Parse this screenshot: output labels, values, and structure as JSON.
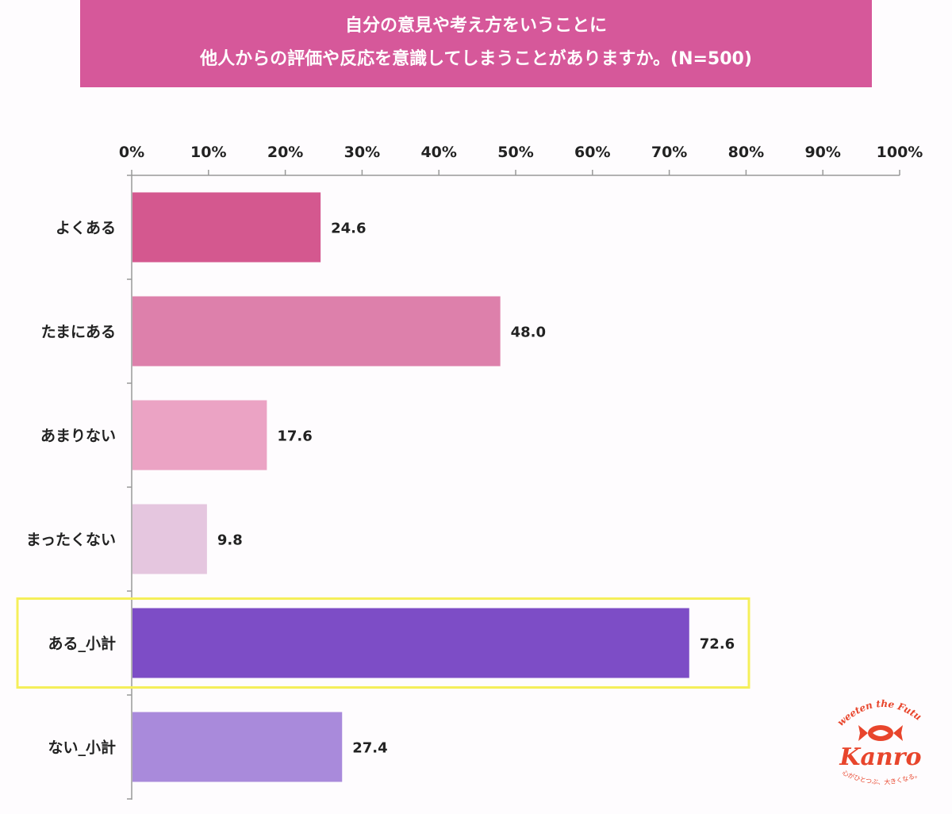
{
  "title": {
    "line1": "自分の意見や考え方をいうことに",
    "line2": "他人からの評価や反応を意識してしまうことがありますか。(N=500)"
  },
  "chart_data": {
    "type": "bar",
    "orientation": "horizontal",
    "categories": [
      "よくある",
      "たまにある",
      "あまりない",
      "まったくない",
      "ある_小計",
      "ない_小計"
    ],
    "values": [
      24.6,
      48.0,
      17.6,
      9.8,
      72.6,
      27.4
    ],
    "value_labels": [
      "24.6",
      "48.0",
      "17.6",
      "9.8",
      "72.6",
      "27.4"
    ],
    "colors": [
      "#d4588f",
      "#dd80ab",
      "#eba3c4",
      "#e5c6df",
      "#7d4dc6",
      "#a98adb"
    ],
    "xlim": [
      0,
      100
    ],
    "x_ticks": [
      0,
      10,
      20,
      30,
      40,
      50,
      60,
      70,
      80,
      90,
      100
    ],
    "x_tick_labels": [
      "0%",
      "10%",
      "20%",
      "30%",
      "40%",
      "50%",
      "60%",
      "70%",
      "80%",
      "90%",
      "100%"
    ],
    "xaxis_position": "top",
    "grid": false,
    "highlight_category": "ある_小計",
    "highlight_color": "#f5ef5a"
  },
  "logo": {
    "tagline_top": "Sweeten the Future",
    "brand": "Kanro",
    "tagline_bottom": "心がひとつぶ、大きくなる。",
    "color": "#e8452c"
  }
}
